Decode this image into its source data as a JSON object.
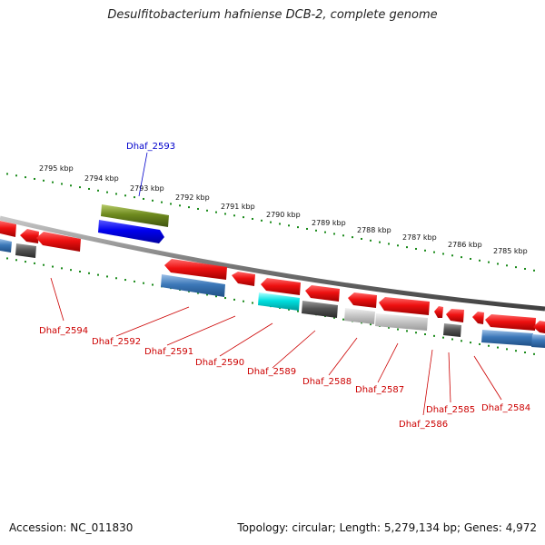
{
  "title": "Desulfitobacterium hafniense DCB-2, complete genome",
  "footer": {
    "accession": "Accession: NC_011830",
    "summary": "Topology: circular; Length: 5,279,134 bp; Genes: 4,972"
  },
  "colors": {
    "strand": "#7a7a7a",
    "tick": "#1a8a1a",
    "forward_label": "#0000cc",
    "reverse_label": "#cc0000"
  },
  "kbp_labels": [
    "2795 kbp",
    "2794 kbp",
    "2793 kbp",
    "2792 kbp",
    "2791 kbp",
    "2790 kbp",
    "2789 kbp",
    "2788 kbp",
    "2787 kbp",
    "2786 kbp",
    "2785 kbp"
  ],
  "gene_labels": [
    {
      "name": "Dhaf_2593",
      "strand": "forward"
    },
    {
      "name": "Dhaf_2594",
      "strand": "reverse"
    },
    {
      "name": "Dhaf_2592",
      "strand": "reverse"
    },
    {
      "name": "Dhaf_2591",
      "strand": "reverse"
    },
    {
      "name": "Dhaf_2590",
      "strand": "reverse"
    },
    {
      "name": "Dhaf_2589",
      "strand": "reverse"
    },
    {
      "name": "Dhaf_2588",
      "strand": "reverse"
    },
    {
      "name": "Dhaf_2587",
      "strand": "reverse"
    },
    {
      "name": "Dhaf_2586",
      "strand": "reverse"
    },
    {
      "name": "Dhaf_2585",
      "strand": "reverse"
    },
    {
      "name": "Dhaf_2584",
      "strand": "reverse"
    }
  ],
  "gene_colors": [
    "#ee1111",
    "#999999",
    "#444444",
    "#2a6aa8",
    "#00cccc",
    "#6e8a1e",
    "#0000ee",
    "#cccccc",
    "#666666"
  ]
}
